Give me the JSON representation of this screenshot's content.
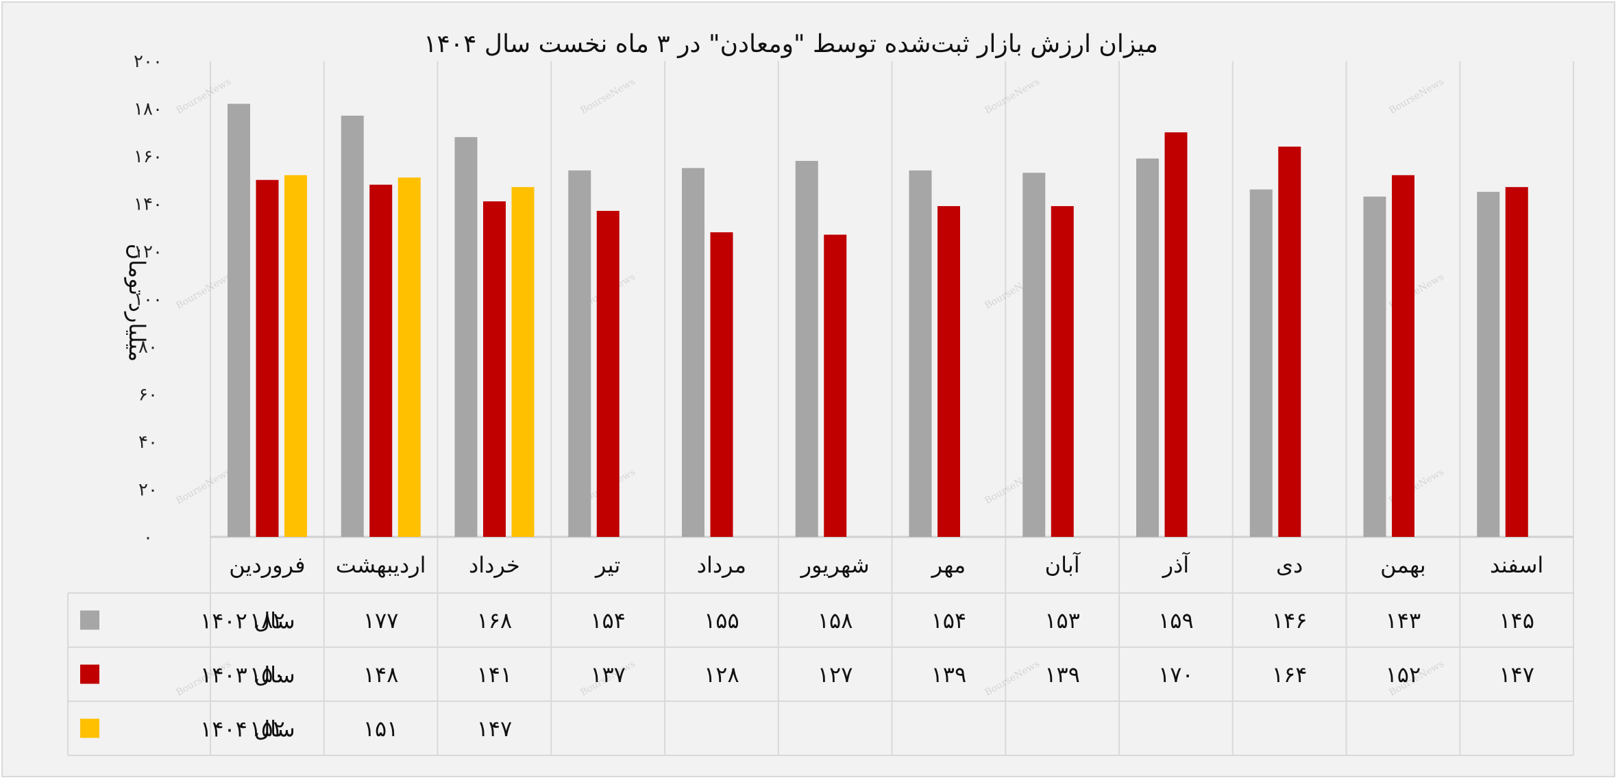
{
  "chart_data": {
    "type": "bar",
    "title": "میزان ارزش بازار ثبت‌شده توسط \"ومعادن\" در ۳ ماه نخست سال ۱۴۰۴",
    "ylabel": "میلیارد تومان",
    "xlabel": "",
    "ylim": [
      0,
      200
    ],
    "yticks": [
      0,
      20,
      40,
      60,
      80,
      100,
      120,
      140,
      160,
      180,
      200
    ],
    "ytick_labels": [
      "۰",
      "۲۰",
      "۴۰",
      "۶۰",
      "۸۰",
      "۱۰۰",
      "۱۲۰",
      "۱۴۰",
      "۱۶۰",
      "۱۸۰",
      "۲۰۰"
    ],
    "grid": "vertical",
    "legend": "data-table",
    "categories": [
      "فروردین",
      "اردیبهشت",
      "خرداد",
      "تیر",
      "مرداد",
      "شهریور",
      "مهر",
      "آبان",
      "آذر",
      "دی",
      "بهمن",
      "اسفند"
    ],
    "series": [
      {
        "name": "سال ۱۴۰۲",
        "color": "#a6a6a6",
        "values": [
          182,
          177,
          168,
          154,
          155,
          158,
          154,
          153,
          159,
          146,
          143,
          145
        ],
        "labels": [
          "۱۸۲",
          "۱۷۷",
          "۱۶۸",
          "۱۵۴",
          "۱۵۵",
          "۱۵۸",
          "۱۵۴",
          "۱۵۳",
          "۱۵۹",
          "۱۴۶",
          "۱۴۳",
          "۱۴۵"
        ]
      },
      {
        "name": "سال ۱۴۰۳",
        "color": "#c00000",
        "values": [
          150,
          148,
          141,
          137,
          128,
          127,
          139,
          139,
          170,
          164,
          152,
          147
        ],
        "labels": [
          "۱۵۰",
          "۱۴۸",
          "۱۴۱",
          "۱۳۷",
          "۱۲۸",
          "۱۲۷",
          "۱۳۹",
          "۱۳۹",
          "۱۷۰",
          "۱۶۴",
          "۱۵۲",
          "۱۴۷"
        ]
      },
      {
        "name": "سال ۱۴۰۴",
        "color": "#ffc000",
        "values": [
          152,
          151,
          147,
          null,
          null,
          null,
          null,
          null,
          null,
          null,
          null,
          null
        ],
        "labels": [
          "۱۵۲",
          "۱۵۱",
          "۱۴۷",
          "",
          "",
          "",
          "",
          "",
          "",
          "",
          "",
          ""
        ]
      }
    ],
    "watermark": "BourseNews"
  }
}
